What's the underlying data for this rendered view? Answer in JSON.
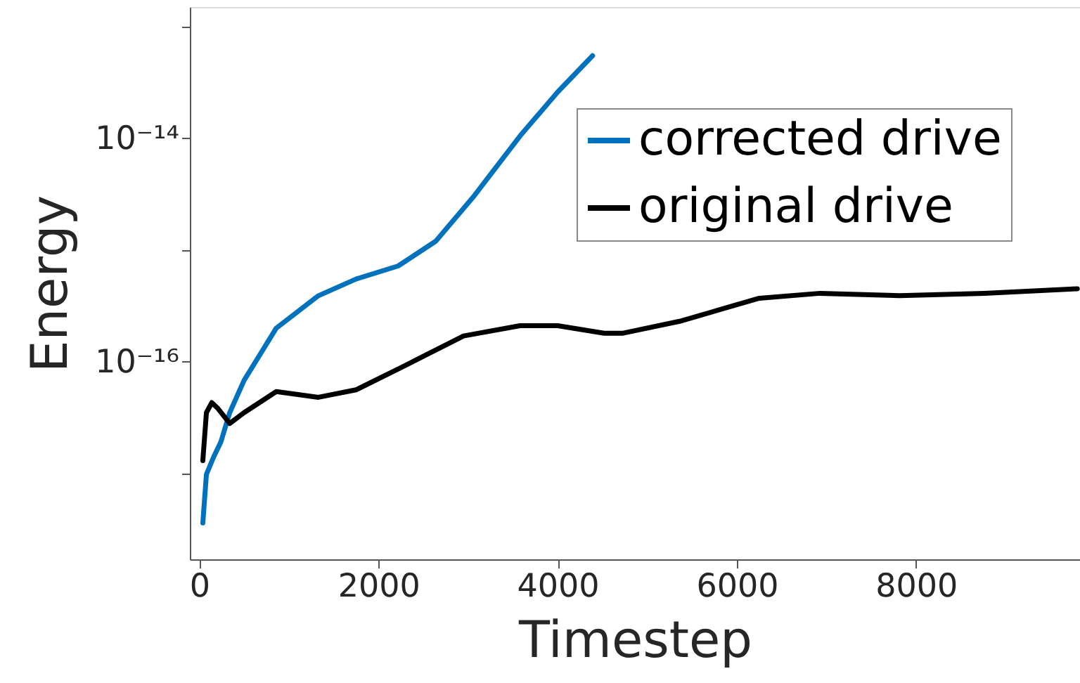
{
  "chart_data": {
    "type": "line",
    "xlabel": "Timestep",
    "ylabel": "Energy",
    "log": "y",
    "grid": false,
    "legend": "top right",
    "marker": "none",
    "line_style": "solid",
    "xlim": [
      -105,
      9830
    ],
    "xticks": [
      0,
      2000,
      4000,
      6000,
      8000
    ],
    "ylim": [
      1.7e-18,
      1.5e-13
    ],
    "yticks": [
      {
        "value": 1e-17,
        "label": null
      },
      {
        "value": 1e-16,
        "label": "10⁻¹⁶"
      },
      {
        "value": 1e-15,
        "label": null
      },
      {
        "value": 1e-14,
        "label": "10⁻¹⁴"
      },
      {
        "value": 1e-13,
        "label": null
      }
    ],
    "series": [
      {
        "name": "corrected drive",
        "color": "#0072bd",
        "x": [
          40,
          80,
          160,
          240,
          340,
          500,
          860,
          1330,
          1750,
          2220,
          2640,
          3060,
          3580,
          4000,
          4390
        ],
        "values": [
          3.6e-18,
          9.8e-18,
          1.4e-17,
          1.9e-17,
          3.5e-17,
          6.8e-17,
          2e-16,
          3.9e-16,
          5.5e-16,
          7.2e-16,
          1.2e-15,
          3e-15,
          1.05e-14,
          2.6e-14,
          5.5e-14
        ]
      },
      {
        "name": "original drive",
        "color": "#000000",
        "x": [
          40,
          80,
          140,
          210,
          340,
          500,
          860,
          1330,
          1750,
          2280,
          2950,
          3580,
          4000,
          4520,
          4730,
          5360,
          6250,
          6930,
          7820,
          8760,
          9800
        ],
        "values": [
          1.3e-17,
          3.5e-17,
          4.3e-17,
          3.8e-17,
          2.8e-17,
          3.5e-17,
          5.4e-17,
          4.8e-17,
          5.6e-17,
          9.1e-17,
          1.7e-16,
          2.1e-16,
          2.1e-16,
          1.8e-16,
          1.8e-16,
          2.3e-16,
          3.7e-16,
          4.1e-16,
          3.9e-16,
          4.1e-16,
          4.5e-16
        ]
      }
    ]
  }
}
